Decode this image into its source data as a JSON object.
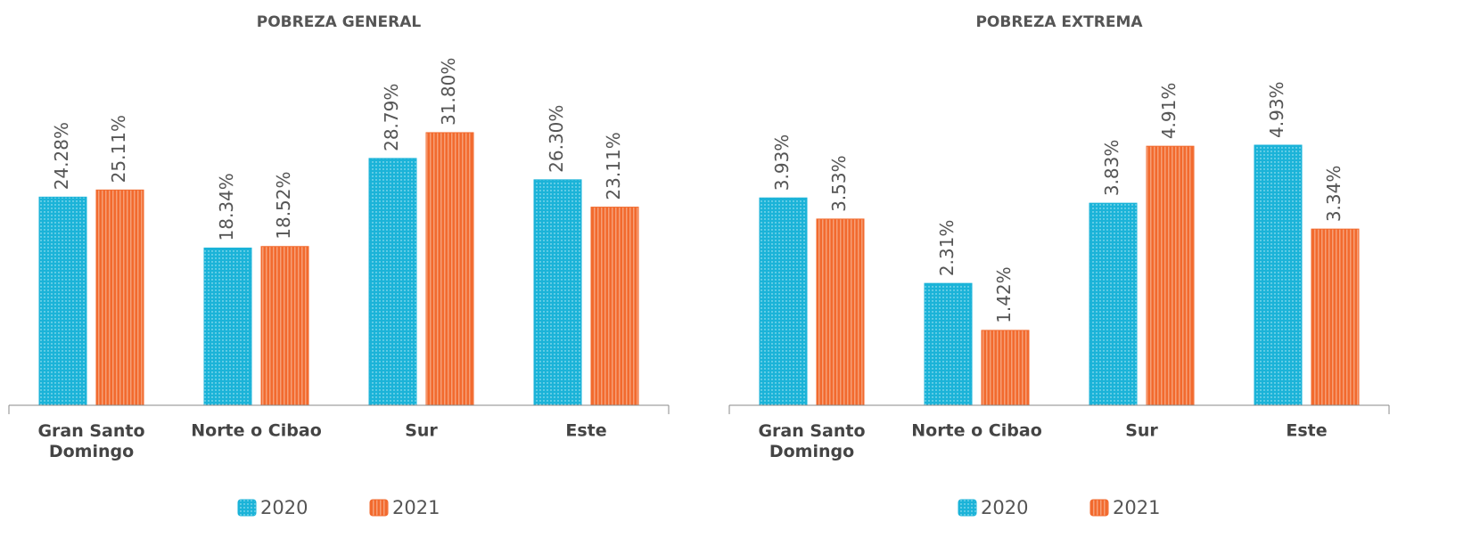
{
  "chart_data": [
    {
      "type": "bar",
      "title": "POBREZA GENERAL",
      "categories": [
        "Gran Santo Domingo",
        "Norte o Cibao",
        "Sur",
        "Este"
      ],
      "series": [
        {
          "name": "2020",
          "color": "#1bb3d8",
          "values": [
            24.28,
            18.34,
            28.79,
            26.3
          ],
          "value_labels": [
            "24.28%",
            "18.34%",
            "28.79%",
            "26.30%"
          ]
        },
        {
          "name": "2021",
          "color": "#f26a2e",
          "values": [
            25.11,
            18.52,
            31.8,
            23.11
          ],
          "value_labels": [
            "25.11%",
            "18.52%",
            "31.80%",
            "23.11%"
          ]
        }
      ],
      "ylim": [
        0,
        40
      ]
    },
    {
      "type": "bar",
      "title": "POBREZA EXTREMA",
      "categories": [
        "Gran Santo Domingo",
        "Norte o Cibao",
        "Sur",
        "Este"
      ],
      "series": [
        {
          "name": "2020",
          "color": "#1bb3d8",
          "values": [
            3.93,
            2.31,
            3.83,
            4.93
          ],
          "value_labels": [
            "3.93%",
            "2.31%",
            "3.83%",
            "4.93%"
          ]
        },
        {
          "name": "2021",
          "color": "#f26a2e",
          "values": [
            3.53,
            1.42,
            4.91,
            3.34
          ],
          "value_labels": [
            "3.53%",
            "1.42%",
            "4.91%",
            "3.34%"
          ]
        }
      ],
      "ylim": [
        0,
        6.5
      ]
    }
  ]
}
